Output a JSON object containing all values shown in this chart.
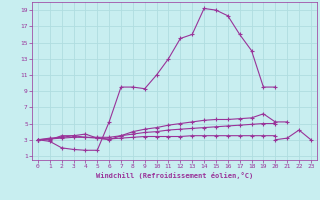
{
  "xlabel": "Windchill (Refroidissement éolien,°C)",
  "bg_color": "#c8eef0",
  "grid_color": "#b0dde0",
  "line_color": "#993399",
  "xlim": [
    -0.5,
    23.5
  ],
  "ylim": [
    0.5,
    20
  ],
  "xticks": [
    0,
    1,
    2,
    3,
    4,
    5,
    6,
    7,
    8,
    9,
    10,
    11,
    12,
    13,
    14,
    15,
    16,
    17,
    18,
    19,
    20,
    21,
    22,
    23
  ],
  "yticks": [
    1,
    3,
    5,
    7,
    9,
    11,
    13,
    15,
    17,
    19
  ],
  "series": [
    [
      3,
      2.8,
      2.0,
      1.8,
      1.7,
      1.7,
      5.2,
      9.5,
      9.5,
      9.3,
      11.0,
      13.0,
      15.5,
      16.0,
      19.2,
      19.0,
      18.3,
      16.0,
      14.0,
      9.5,
      9.5,
      null,
      null,
      null
    ],
    [
      3,
      3.0,
      3.5,
      3.5,
      3.7,
      3.2,
      3.0,
      3.5,
      4.0,
      4.3,
      4.5,
      4.8,
      5.0,
      5.2,
      5.4,
      5.5,
      5.5,
      5.6,
      5.7,
      6.2,
      5.2,
      5.2,
      null,
      null
    ],
    [
      3,
      3.2,
      3.3,
      3.5,
      3.3,
      3.3,
      3.3,
      3.5,
      3.7,
      3.9,
      4.0,
      4.2,
      4.3,
      4.4,
      4.5,
      4.6,
      4.7,
      4.8,
      4.9,
      5.0,
      5.0,
      null,
      null,
      null
    ],
    [
      3,
      3.1,
      3.2,
      3.3,
      3.3,
      3.2,
      3.1,
      3.2,
      3.3,
      3.4,
      3.4,
      3.4,
      3.4,
      3.5,
      3.5,
      3.5,
      3.5,
      3.5,
      3.5,
      3.5,
      3.5,
      null,
      null,
      null
    ],
    [
      null,
      null,
      null,
      null,
      null,
      null,
      null,
      null,
      null,
      null,
      null,
      null,
      null,
      null,
      null,
      null,
      null,
      null,
      null,
      null,
      3.0,
      3.2,
      4.2,
      3.0
    ]
  ]
}
